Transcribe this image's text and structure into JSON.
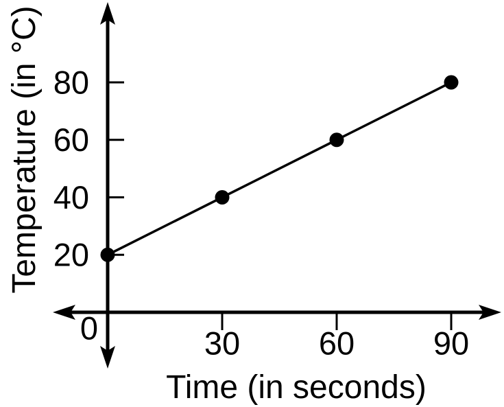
{
  "chart_data": {
    "type": "line",
    "title": "",
    "xlabel": "Time (in seconds)",
    "ylabel": "Temperature (in °C)",
    "x": [
      0,
      30,
      60,
      90
    ],
    "y": [
      20,
      40,
      60,
      80
    ],
    "x_ticks": [
      0,
      30,
      60,
      90
    ],
    "y_ticks": [
      20,
      40,
      60,
      80
    ],
    "xlim": [
      0,
      103
    ],
    "ylim": [
      0,
      108
    ],
    "grid": false,
    "legend": "none",
    "marker": "filled-circle",
    "line_color": "#000000",
    "marker_color": "#000000",
    "axis_color": "#000000",
    "background_color": "#ffffff"
  }
}
